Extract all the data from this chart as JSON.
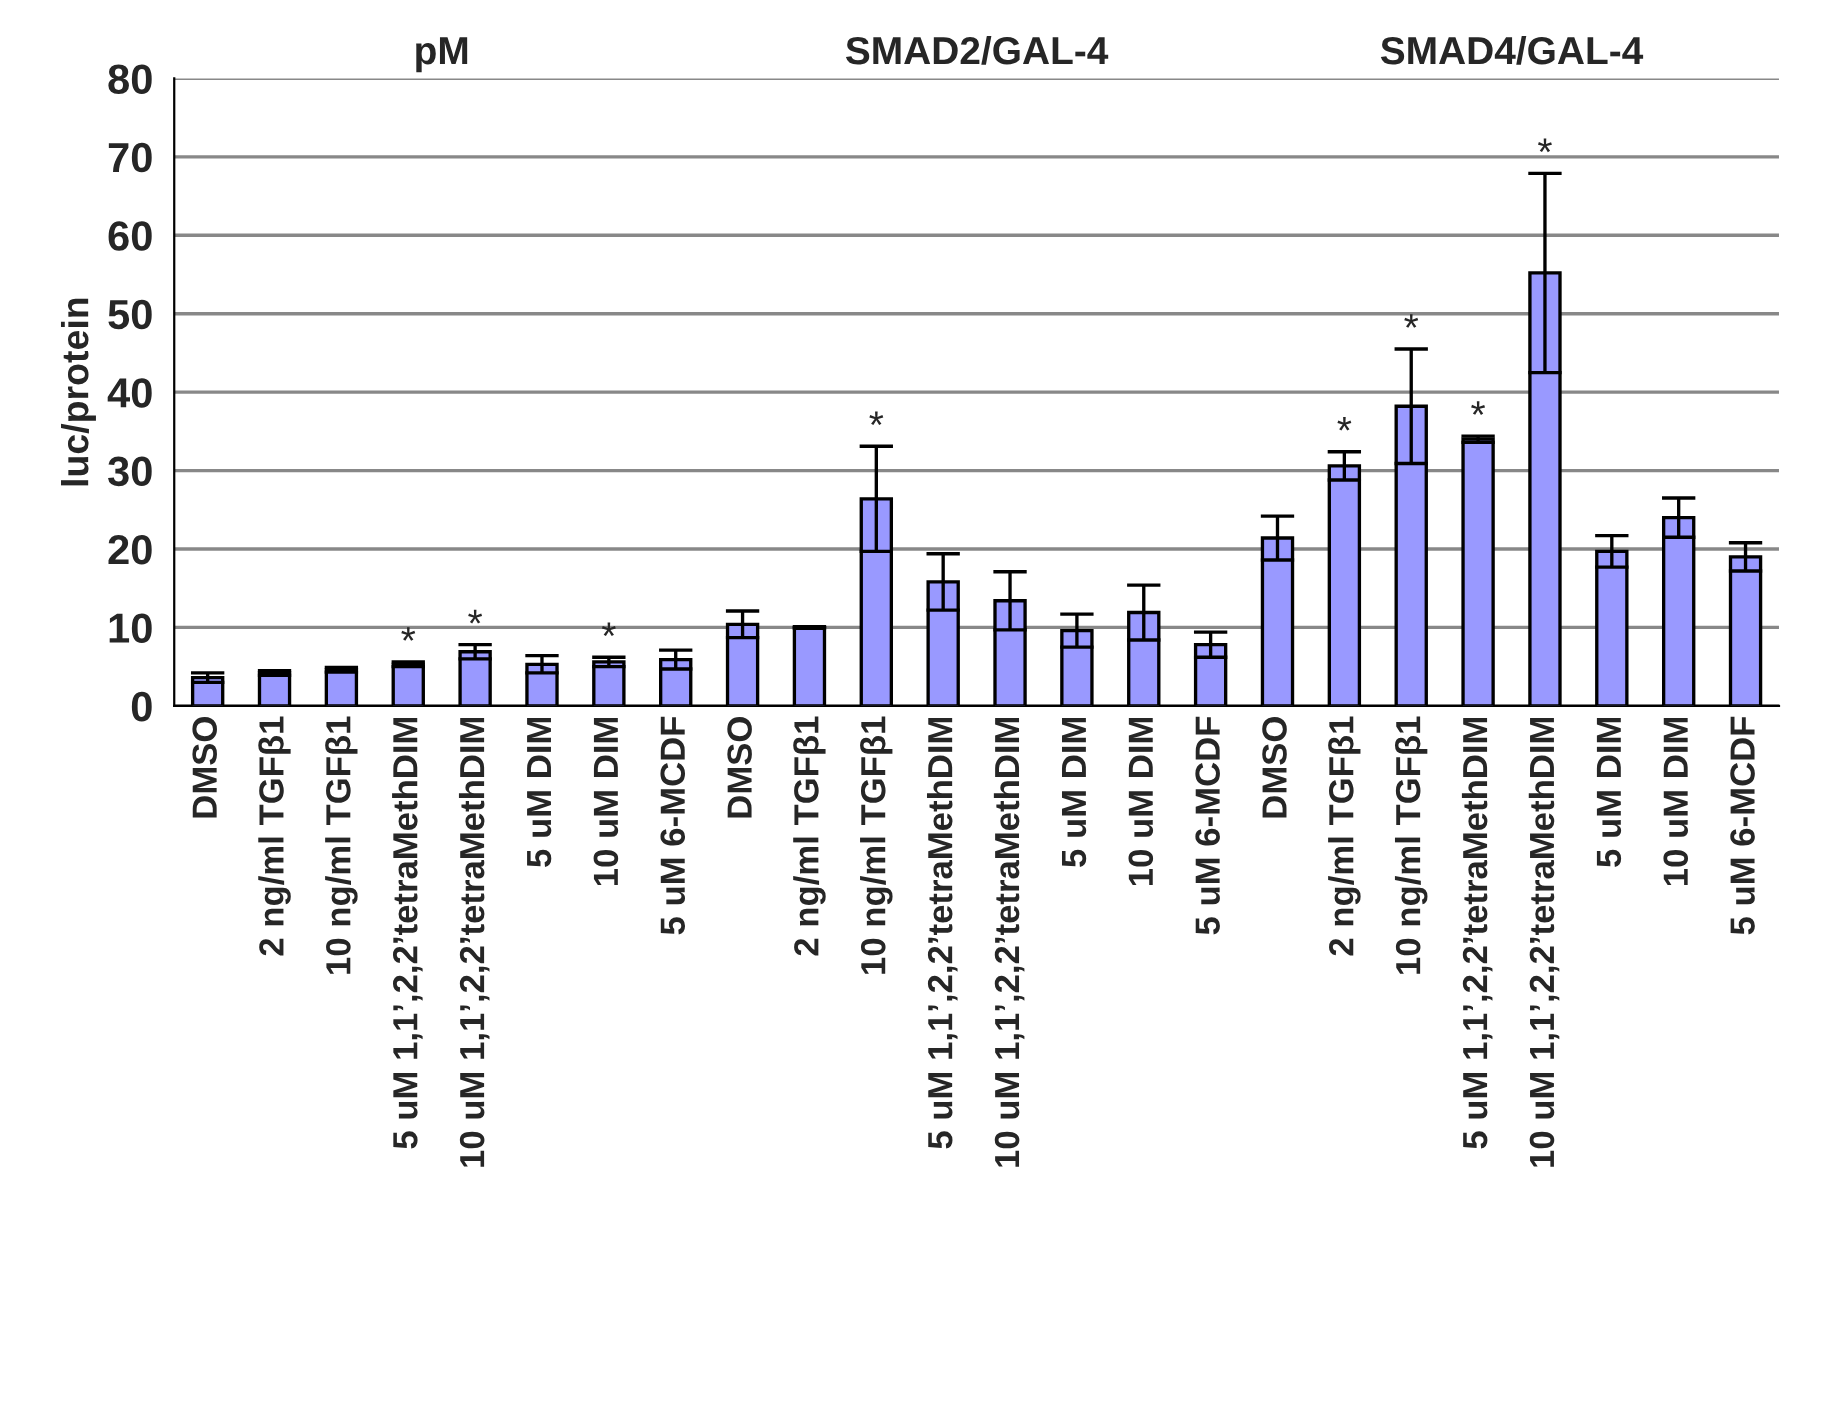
{
  "chart_data": {
    "type": "bar",
    "ylabel": "luc/protein",
    "annotations": [
      "pM",
      "SMAD2/GAL-4",
      "SMAD4/GAL-4"
    ],
    "categories": [
      "DMSO",
      "2 ng/ml TGFβ1",
      "10 ng/ml TGFβ1",
      "5 uM 1,1’,2,2’tetraMethDIM",
      "10 uM 1,1’,2,2’tetraMethDIM",
      "5 uM DIM",
      "10 uM DIM",
      "5 uM 6-MCDF",
      "DMSO",
      "2 ng/ml TGFβ1",
      "10 ng/ml TGFβ1",
      "5 uM 1,1’,2,2’tetraMethDIM",
      "10 uM 1,1’,2,2’tetraMethDIM",
      "5 uM DIM",
      "10 uM DIM",
      "5 uM 6-MCDF",
      "DMSO",
      "2 ng/ml TGFβ1",
      "10 ng/ml TGFβ1",
      "5 uM 1,1’,2,2’tetraMethDIM",
      "10 uM 1,1’,2,2’tetraMethDIM",
      "5 uM DIM",
      "10 uM DIM",
      "5 uM 6-MCDF"
    ],
    "values": [
      3.6,
      4.2,
      4.6,
      5.3,
      6.9,
      5.3,
      5.6,
      5.9,
      10.4,
      10.0,
      26.4,
      15.8,
      13.4,
      9.6,
      11.9,
      7.8,
      21.4,
      30.6,
      38.2,
      34.0,
      55.2,
      19.7,
      24.0,
      19.0
    ],
    "errors": [
      0.6,
      0.3,
      0.3,
      0.3,
      0.9,
      1.1,
      0.6,
      1.2,
      1.7,
      0.1,
      6.7,
      3.6,
      3.7,
      2.1,
      3.5,
      1.6,
      2.8,
      1.8,
      7.3,
      0.4,
      12.7,
      2.0,
      2.5,
      1.8
    ],
    "value_labels": [
      null,
      null,
      null,
      "*",
      "*",
      null,
      "*",
      null,
      null,
      null,
      "*",
      null,
      null,
      null,
      null,
      null,
      null,
      "*",
      "*",
      "*",
      "*",
      null,
      null,
      null
    ],
    "color": "#9999ff",
    "ylim": [
      0,
      80
    ],
    "yticks": [
      0,
      10,
      20,
      30,
      40,
      50,
      60,
      70,
      80
    ],
    "grid": "y",
    "legend": false
  }
}
